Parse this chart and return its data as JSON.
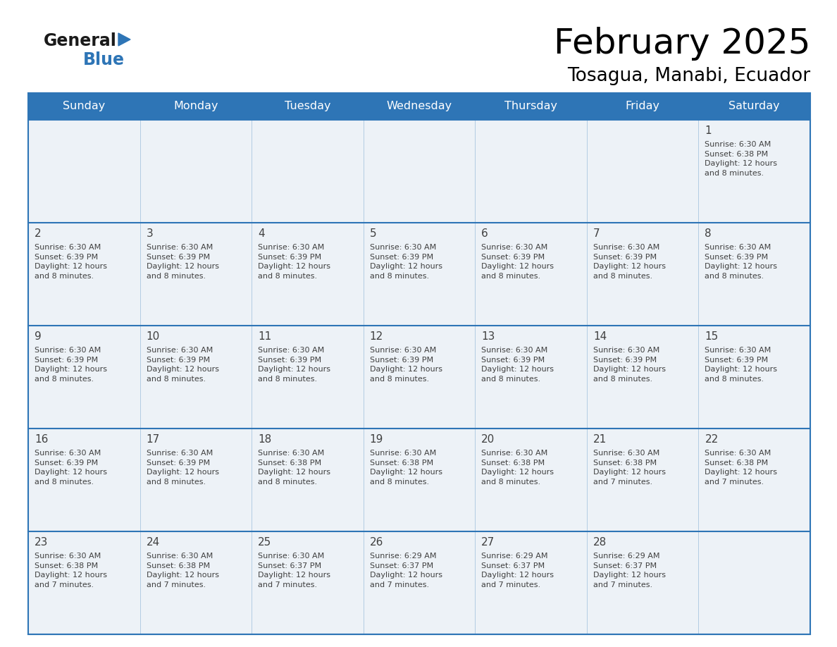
{
  "title": "February 2025",
  "subtitle": "Tosagua, Manabi, Ecuador",
  "days_of_week": [
    "Sunday",
    "Monday",
    "Tuesday",
    "Wednesday",
    "Thursday",
    "Friday",
    "Saturday"
  ],
  "header_bg": "#2e75b6",
  "header_text": "#ffffff",
  "cell_bg": "#edf2f7",
  "cell_bg_white": "#ffffff",
  "line_color": "#2e75b6",
  "text_color": "#404040",
  "calendar_data": [
    [
      null,
      null,
      null,
      null,
      null,
      null,
      {
        "day": "1",
        "sunrise": "6:30 AM",
        "sunset": "6:38 PM",
        "daylight": "12 hours\nand 8 minutes."
      }
    ],
    [
      {
        "day": "2",
        "sunrise": "6:30 AM",
        "sunset": "6:39 PM",
        "daylight": "12 hours\nand 8 minutes."
      },
      {
        "day": "3",
        "sunrise": "6:30 AM",
        "sunset": "6:39 PM",
        "daylight": "12 hours\nand 8 minutes."
      },
      {
        "day": "4",
        "sunrise": "6:30 AM",
        "sunset": "6:39 PM",
        "daylight": "12 hours\nand 8 minutes."
      },
      {
        "day": "5",
        "sunrise": "6:30 AM",
        "sunset": "6:39 PM",
        "daylight": "12 hours\nand 8 minutes."
      },
      {
        "day": "6",
        "sunrise": "6:30 AM",
        "sunset": "6:39 PM",
        "daylight": "12 hours\nand 8 minutes."
      },
      {
        "day": "7",
        "sunrise": "6:30 AM",
        "sunset": "6:39 PM",
        "daylight": "12 hours\nand 8 minutes."
      },
      {
        "day": "8",
        "sunrise": "6:30 AM",
        "sunset": "6:39 PM",
        "daylight": "12 hours\nand 8 minutes."
      }
    ],
    [
      {
        "day": "9",
        "sunrise": "6:30 AM",
        "sunset": "6:39 PM",
        "daylight": "12 hours\nand 8 minutes."
      },
      {
        "day": "10",
        "sunrise": "6:30 AM",
        "sunset": "6:39 PM",
        "daylight": "12 hours\nand 8 minutes."
      },
      {
        "day": "11",
        "sunrise": "6:30 AM",
        "sunset": "6:39 PM",
        "daylight": "12 hours\nand 8 minutes."
      },
      {
        "day": "12",
        "sunrise": "6:30 AM",
        "sunset": "6:39 PM",
        "daylight": "12 hours\nand 8 minutes."
      },
      {
        "day": "13",
        "sunrise": "6:30 AM",
        "sunset": "6:39 PM",
        "daylight": "12 hours\nand 8 minutes."
      },
      {
        "day": "14",
        "sunrise": "6:30 AM",
        "sunset": "6:39 PM",
        "daylight": "12 hours\nand 8 minutes."
      },
      {
        "day": "15",
        "sunrise": "6:30 AM",
        "sunset": "6:39 PM",
        "daylight": "12 hours\nand 8 minutes."
      }
    ],
    [
      {
        "day": "16",
        "sunrise": "6:30 AM",
        "sunset": "6:39 PM",
        "daylight": "12 hours\nand 8 minutes."
      },
      {
        "day": "17",
        "sunrise": "6:30 AM",
        "sunset": "6:39 PM",
        "daylight": "12 hours\nand 8 minutes."
      },
      {
        "day": "18",
        "sunrise": "6:30 AM",
        "sunset": "6:38 PM",
        "daylight": "12 hours\nand 8 minutes."
      },
      {
        "day": "19",
        "sunrise": "6:30 AM",
        "sunset": "6:38 PM",
        "daylight": "12 hours\nand 8 minutes."
      },
      {
        "day": "20",
        "sunrise": "6:30 AM",
        "sunset": "6:38 PM",
        "daylight": "12 hours\nand 8 minutes."
      },
      {
        "day": "21",
        "sunrise": "6:30 AM",
        "sunset": "6:38 PM",
        "daylight": "12 hours\nand 7 minutes."
      },
      {
        "day": "22",
        "sunrise": "6:30 AM",
        "sunset": "6:38 PM",
        "daylight": "12 hours\nand 7 minutes."
      }
    ],
    [
      {
        "day": "23",
        "sunrise": "6:30 AM",
        "sunset": "6:38 PM",
        "daylight": "12 hours\nand 7 minutes."
      },
      {
        "day": "24",
        "sunrise": "6:30 AM",
        "sunset": "6:38 PM",
        "daylight": "12 hours\nand 7 minutes."
      },
      {
        "day": "25",
        "sunrise": "6:30 AM",
        "sunset": "6:37 PM",
        "daylight": "12 hours\nand 7 minutes."
      },
      {
        "day": "26",
        "sunrise": "6:29 AM",
        "sunset": "6:37 PM",
        "daylight": "12 hours\nand 7 minutes."
      },
      {
        "day": "27",
        "sunrise": "6:29 AM",
        "sunset": "6:37 PM",
        "daylight": "12 hours\nand 7 minutes."
      },
      {
        "day": "28",
        "sunrise": "6:29 AM",
        "sunset": "6:37 PM",
        "daylight": "12 hours\nand 7 minutes."
      },
      null
    ]
  ],
  "figwidth": 11.88,
  "figheight": 9.18,
  "dpi": 100
}
